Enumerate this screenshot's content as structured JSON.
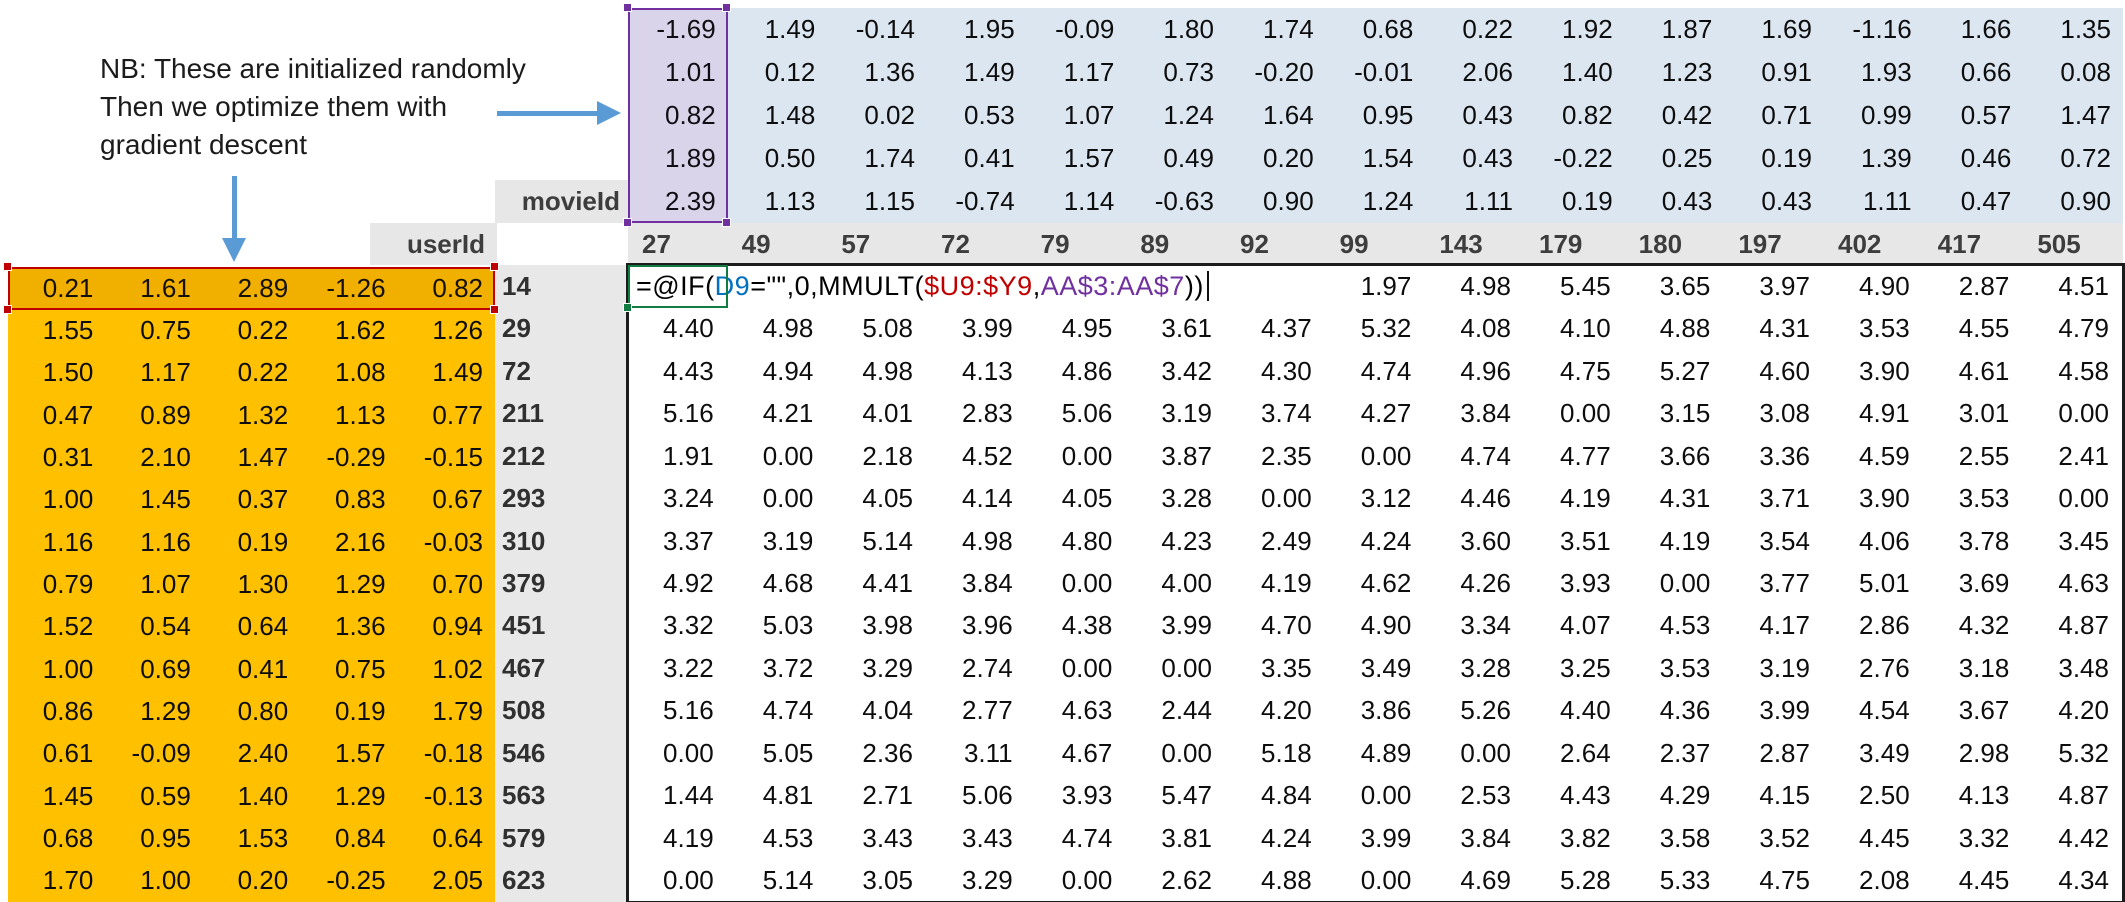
{
  "annotation": {
    "line1": "NB: These are initialized randomly",
    "line2": "Then we optimize them with",
    "line3": "gradient descent"
  },
  "labels": {
    "movie_header": "movieId",
    "user_header": "userId"
  },
  "movie_ids": [
    "27",
    "49",
    "57",
    "72",
    "79",
    "89",
    "92",
    "99",
    "143",
    "179",
    "180",
    "197",
    "402",
    "417",
    "505"
  ],
  "user_ids": [
    "14",
    "29",
    "72",
    "211",
    "212",
    "293",
    "310",
    "379",
    "451",
    "467",
    "508",
    "546",
    "563",
    "579",
    "623"
  ],
  "movie_factors": {
    "rows": [
      [
        "-1.69",
        "1.49",
        "-0.14",
        "1.95",
        "-0.09",
        "1.80",
        "1.74",
        "0.68",
        "0.22",
        "1.92",
        "1.87",
        "1.69",
        "-1.16",
        "1.66",
        "1.35"
      ],
      [
        "1.01",
        "0.12",
        "1.36",
        "1.49",
        "1.17",
        "0.73",
        "-0.20",
        "-0.01",
        "2.06",
        "1.40",
        "1.23",
        "0.91",
        "1.93",
        "0.66",
        "0.08"
      ],
      [
        "0.82",
        "1.48",
        "0.02",
        "0.53",
        "1.07",
        "1.24",
        "1.64",
        "0.95",
        "0.43",
        "0.82",
        "0.42",
        "0.71",
        "0.99",
        "0.57",
        "1.47"
      ],
      [
        "1.89",
        "0.50",
        "1.74",
        "0.41",
        "1.57",
        "0.49",
        "0.20",
        "1.54",
        "0.43",
        "-0.22",
        "0.25",
        "0.19",
        "1.39",
        "0.46",
        "0.72"
      ],
      [
        "2.39",
        "1.13",
        "1.15",
        "-0.74",
        "1.14",
        "-0.63",
        "0.90",
        "1.24",
        "1.11",
        "0.19",
        "0.43",
        "0.43",
        "1.11",
        "0.47",
        "0.90"
      ]
    ]
  },
  "user_factors": {
    "rows": [
      [
        "0.21",
        "1.61",
        "2.89",
        "-1.26",
        "0.82"
      ],
      [
        "1.55",
        "0.75",
        "0.22",
        "1.62",
        "1.26"
      ],
      [
        "1.50",
        "1.17",
        "0.22",
        "1.08",
        "1.49"
      ],
      [
        "0.47",
        "0.89",
        "1.32",
        "1.13",
        "0.77"
      ],
      [
        "0.31",
        "2.10",
        "1.47",
        "-0.29",
        "-0.15"
      ],
      [
        "1.00",
        "1.45",
        "0.37",
        "0.83",
        "0.67"
      ],
      [
        "1.16",
        "1.16",
        "0.19",
        "2.16",
        "-0.03"
      ],
      [
        "0.79",
        "1.07",
        "1.30",
        "1.29",
        "0.70"
      ],
      [
        "1.52",
        "0.54",
        "0.64",
        "1.36",
        "0.94"
      ],
      [
        "1.00",
        "0.69",
        "0.41",
        "0.75",
        "1.02"
      ],
      [
        "0.86",
        "1.29",
        "0.80",
        "0.19",
        "1.79"
      ],
      [
        "0.61",
        "-0.09",
        "2.40",
        "1.57",
        "-0.18"
      ],
      [
        "1.45",
        "0.59",
        "1.40",
        "1.29",
        "-0.13"
      ],
      [
        "0.68",
        "0.95",
        "1.53",
        "0.84",
        "0.64"
      ],
      [
        "1.70",
        "1.00",
        "0.20",
        "-0.25",
        "2.05"
      ]
    ]
  },
  "predictions": {
    "rows": [
      [
        "",
        "",
        "",
        "",
        "",
        "",
        "",
        "1.97",
        "4.98",
        "5.45",
        "3.65",
        "3.97",
        "4.90",
        "2.87",
        "4.51"
      ],
      [
        "4.40",
        "4.98",
        "5.08",
        "3.99",
        "4.95",
        "3.61",
        "4.37",
        "5.32",
        "4.08",
        "4.10",
        "4.88",
        "4.31",
        "3.53",
        "4.55",
        "4.79"
      ],
      [
        "4.43",
        "4.94",
        "4.98",
        "4.13",
        "4.86",
        "3.42",
        "4.30",
        "4.74",
        "4.96",
        "4.75",
        "5.27",
        "4.60",
        "3.90",
        "4.61",
        "4.58"
      ],
      [
        "5.16",
        "4.21",
        "4.01",
        "2.83",
        "5.06",
        "3.19",
        "3.74",
        "4.27",
        "3.84",
        "0.00",
        "3.15",
        "3.08",
        "4.91",
        "3.01",
        "0.00"
      ],
      [
        "1.91",
        "0.00",
        "2.18",
        "4.52",
        "0.00",
        "3.87",
        "2.35",
        "0.00",
        "4.74",
        "4.77",
        "3.66",
        "3.36",
        "4.59",
        "2.55",
        "2.41"
      ],
      [
        "3.24",
        "0.00",
        "4.05",
        "4.14",
        "4.05",
        "3.28",
        "0.00",
        "3.12",
        "4.46",
        "4.19",
        "4.31",
        "3.71",
        "3.90",
        "3.53",
        "0.00"
      ],
      [
        "3.37",
        "3.19",
        "5.14",
        "4.98",
        "4.80",
        "4.23",
        "2.49",
        "4.24",
        "3.60",
        "3.51",
        "4.19",
        "3.54",
        "4.06",
        "3.78",
        "3.45"
      ],
      [
        "4.92",
        "4.68",
        "4.41",
        "3.84",
        "0.00",
        "4.00",
        "4.19",
        "4.62",
        "4.26",
        "3.93",
        "0.00",
        "3.77",
        "5.01",
        "3.69",
        "4.63"
      ],
      [
        "3.32",
        "5.03",
        "3.98",
        "3.96",
        "4.38",
        "3.99",
        "4.70",
        "4.90",
        "3.34",
        "4.07",
        "4.53",
        "4.17",
        "2.86",
        "4.32",
        "4.87"
      ],
      [
        "3.22",
        "3.72",
        "3.29",
        "2.74",
        "0.00",
        "0.00",
        "3.35",
        "3.49",
        "3.28",
        "3.25",
        "3.53",
        "3.19",
        "2.76",
        "3.18",
        "3.48"
      ],
      [
        "5.16",
        "4.74",
        "4.04",
        "2.77",
        "4.63",
        "2.44",
        "4.20",
        "3.86",
        "5.26",
        "4.40",
        "4.36",
        "3.99",
        "4.54",
        "3.67",
        "4.20"
      ],
      [
        "0.00",
        "5.05",
        "2.36",
        "3.11",
        "4.67",
        "0.00",
        "5.18",
        "4.89",
        "0.00",
        "2.64",
        "2.37",
        "2.87",
        "3.49",
        "2.98",
        "5.32"
      ],
      [
        "1.44",
        "4.81",
        "2.71",
        "5.06",
        "3.93",
        "5.47",
        "4.84",
        "0.00",
        "2.53",
        "4.43",
        "4.29",
        "4.15",
        "2.50",
        "4.13",
        "4.87"
      ],
      [
        "4.19",
        "4.53",
        "3.43",
        "3.43",
        "4.74",
        "3.81",
        "4.24",
        "3.99",
        "3.84",
        "3.82",
        "3.58",
        "3.52",
        "4.45",
        "3.32",
        "4.42"
      ],
      [
        "0.00",
        "5.14",
        "3.05",
        "3.29",
        "0.00",
        "2.62",
        "4.88",
        "0.00",
        "4.69",
        "5.28",
        "5.33",
        "4.75",
        "2.08",
        "4.45",
        "4.34"
      ]
    ]
  },
  "formula": {
    "segments": [
      {
        "text": "=@IF(",
        "color": "#000000"
      },
      {
        "text": "D9",
        "color": "#0070C0"
      },
      {
        "text": "=\"\",0,MMULT(",
        "color": "#000000"
      },
      {
        "text": "$U9:$Y9",
        "color": "#C00000"
      },
      {
        "text": ",",
        "color": "#000000"
      },
      {
        "text": "AA$3:AA$7",
        "color": "#7030A0"
      },
      {
        "text": "))",
        "color": "#000000"
      }
    ]
  },
  "colors": {
    "movie_matrix_fill": "#DCE6F1",
    "movie_selected_column_fill": "#DEDBEE",
    "user_matrix_fill": "#FFC000",
    "header_fill": "#E7E7E7",
    "selection_purple": "#7030A0",
    "selection_red": "#C00000",
    "active_cell_green": "#107C41",
    "arrow_blue": "#5B9BD5",
    "reference_blue": "#0070C0"
  }
}
